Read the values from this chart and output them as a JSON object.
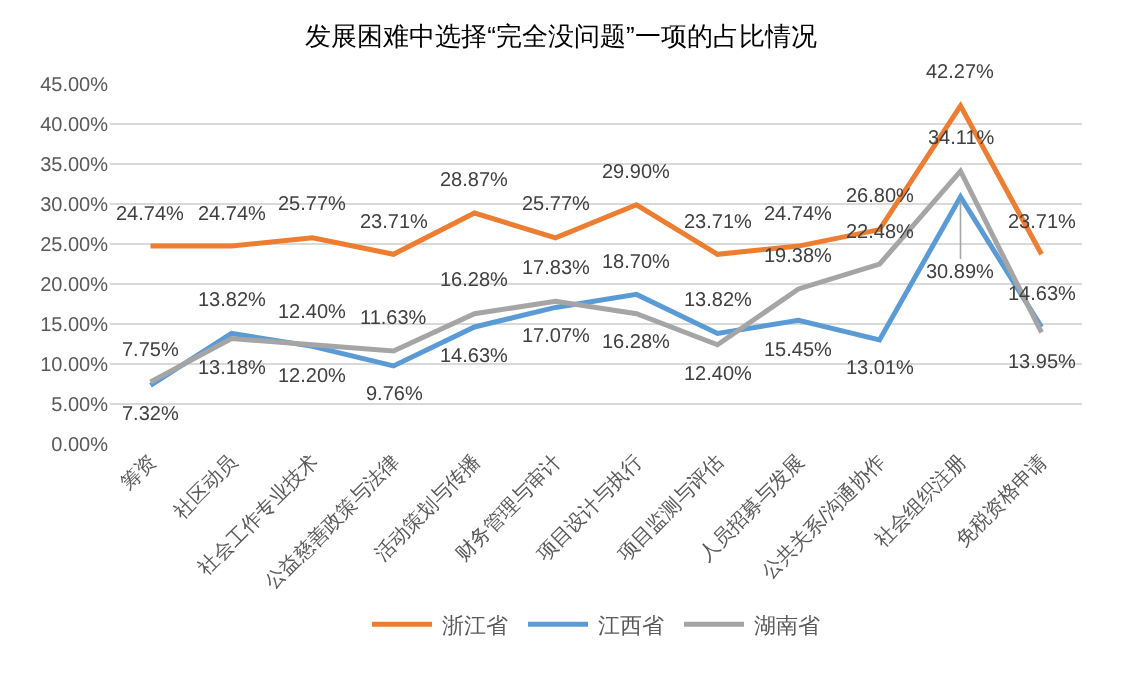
{
  "chart_data": {
    "type": "line",
    "title": "发展困难中选择“完全没问题”一项的占比情况",
    "categories": [
      "筹资",
      "社区动员",
      "社会工作专业技术",
      "公益慈善政策与法律",
      "活动策划与传播",
      "财务管理与审计",
      "项目设计与执行",
      "项目监测与评估",
      "人员招募与发展",
      "公共关系/沟通协作",
      "社会组织注册",
      "免税资格申请"
    ],
    "series": [
      {
        "name": "浙江省",
        "color": "#ed7d31",
        "values": [
          24.74,
          24.74,
          25.77,
          23.71,
          28.87,
          25.77,
          29.9,
          23.71,
          24.74,
          26.8,
          42.27,
          23.71
        ],
        "value_labels": [
          "24.74%",
          "24.74%",
          "25.77%",
          "23.71%",
          "28.87%",
          "25.77%",
          "29.90%",
          "23.71%",
          "24.74%",
          "26.80%",
          "42.27%",
          "23.71%"
        ]
      },
      {
        "name": "江西省",
        "color": "#5b9bd5",
        "values": [
          7.32,
          13.82,
          12.2,
          9.76,
          14.63,
          17.07,
          18.7,
          13.82,
          15.45,
          13.01,
          30.89,
          14.63
        ],
        "value_labels": [
          "7.32%",
          "13.82%",
          "12.20%",
          "9.76%",
          "14.63%",
          "17.07%",
          "18.70%",
          "13.82%",
          "15.45%",
          "13.01%",
          "30.89%",
          "14.63%"
        ]
      },
      {
        "name": "湖南省",
        "color": "#a5a5a5",
        "values": [
          7.75,
          13.18,
          12.4,
          11.63,
          16.28,
          17.83,
          16.28,
          12.4,
          19.38,
          22.48,
          34.11,
          13.95
        ],
        "value_labels": [
          "7.75%",
          "13.18%",
          "12.40%",
          "11.63%",
          "16.28%",
          "17.83%",
          "16.28%",
          "12.40%",
          "19.38%",
          "22.48%",
          "34.11%",
          "13.95%"
        ]
      }
    ],
    "ylim": [
      0,
      45
    ],
    "yticks": [
      {
        "value": 0,
        "label": "0.00%"
      },
      {
        "value": 5,
        "label": "5.00%"
      },
      {
        "value": 10,
        "label": "10.00%"
      },
      {
        "value": 15,
        "label": "15.00%"
      },
      {
        "value": 20,
        "label": "20.00%"
      },
      {
        "value": 25,
        "label": "25.00%"
      },
      {
        "value": 30,
        "label": "30.00%"
      },
      {
        "value": 35,
        "label": "35.00%"
      },
      {
        "value": 40,
        "label": "40.00%"
      },
      {
        "value": 45,
        "label": "45.00%"
      }
    ],
    "grid": "y",
    "legend": "bottom",
    "marker": "none",
    "line_style": "solid"
  }
}
